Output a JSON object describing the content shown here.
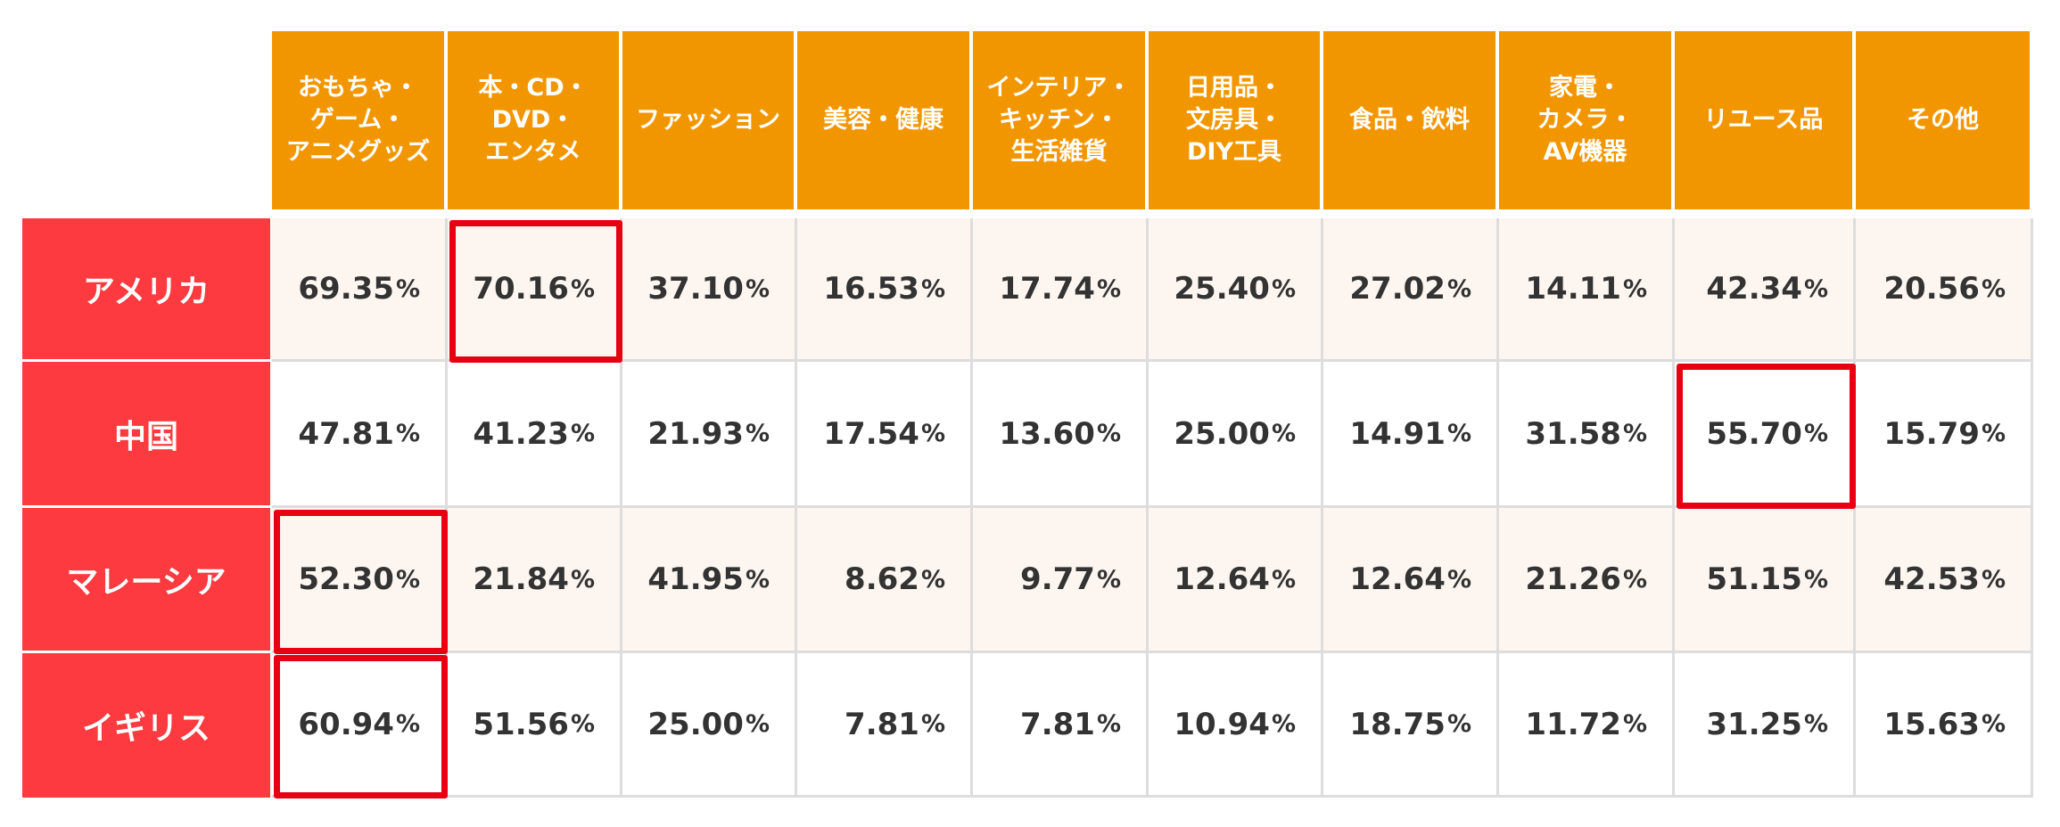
{
  "chart_data": {
    "type": "table",
    "columns": [
      "おもちゃ・\nゲーム・\nアニメグッズ",
      "本・CD・\nDVD・\nエンタメ",
      "ファッション",
      "美容・健康",
      "インテリア・\nキッチン・\n生活雑貨",
      "日用品・\n文房具・\nDIY工具",
      "食品・飲料",
      "家電・\nカメラ・\nAV機器",
      "リユース品",
      "その他"
    ],
    "rows": [
      {
        "label": "アメリカ",
        "values": [
          69.35,
          70.16,
          37.1,
          16.53,
          17.74,
          25.4,
          27.02,
          14.11,
          42.34,
          20.56
        ]
      },
      {
        "label": "中国",
        "values": [
          47.81,
          41.23,
          21.93,
          17.54,
          13.6,
          25.0,
          14.91,
          31.58,
          55.7,
          15.79
        ]
      },
      {
        "label": "マレーシア",
        "values": [
          52.3,
          21.84,
          41.95,
          8.62,
          9.77,
          12.64,
          12.64,
          21.26,
          51.15,
          42.53
        ]
      },
      {
        "label": "イギリス",
        "values": [
          60.94,
          51.56,
          25.0,
          7.81,
          7.81,
          10.94,
          18.75,
          11.72,
          31.25,
          15.63
        ]
      }
    ],
    "unit": "%",
    "highlighted_cells": [
      {
        "row": 0,
        "col": 1
      },
      {
        "row": 1,
        "col": 8
      },
      {
        "row": 2,
        "col": 0
      },
      {
        "row": 3,
        "col": 0
      }
    ],
    "colors": {
      "column_header": "#f29600",
      "row_header": "#fd3a3f",
      "highlight": "#e60012",
      "shaded_row": "#fdf6f0"
    }
  }
}
